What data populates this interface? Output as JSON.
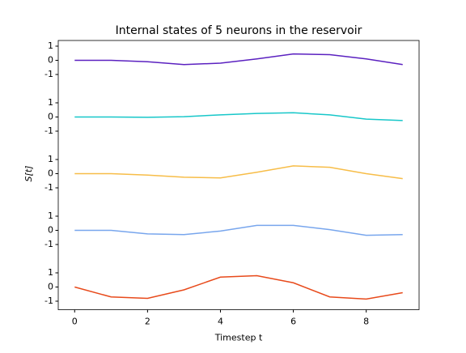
{
  "chart_data": [
    {
      "type": "line",
      "title": "Internal states of 5 neurons in the reservoir",
      "x": [
        0,
        1,
        2,
        3,
        4,
        5,
        6,
        7,
        8,
        9
      ],
      "values": [
        0,
        0,
        -0.1,
        -0.3,
        -0.2,
        0.1,
        0.45,
        0.4,
        0.1,
        -0.3
      ],
      "color": "#5b21c0",
      "ylim": [
        -2,
        1.4
      ],
      "yticks": [
        1,
        0,
        -1
      ]
    },
    {
      "type": "line",
      "x": [
        0,
        1,
        2,
        3,
        4,
        5,
        6,
        7,
        8,
        9
      ],
      "values": [
        0,
        0,
        -0.02,
        0.02,
        0.15,
        0.25,
        0.3,
        0.15,
        -0.15,
        -0.25
      ],
      "color": "#17c7c9",
      "ylim": [
        -2,
        2
      ],
      "yticks": [
        1,
        0,
        -1
      ]
    },
    {
      "type": "line",
      "ylabel": "S[t]",
      "x": [
        0,
        1,
        2,
        3,
        4,
        5,
        6,
        7,
        8,
        9
      ],
      "values": [
        0,
        0,
        -0.1,
        -0.25,
        -0.3,
        0.1,
        0.55,
        0.45,
        0,
        -0.35
      ],
      "color": "#f7bd48",
      "ylim": [
        -2,
        2
      ],
      "yticks": [
        1,
        0,
        -1
      ]
    },
    {
      "type": "line",
      "x": [
        0,
        1,
        2,
        3,
        4,
        5,
        6,
        7,
        8,
        9
      ],
      "values": [
        0,
        0,
        -0.25,
        -0.3,
        -0.05,
        0.35,
        0.35,
        0.05,
        -0.35,
        -0.3
      ],
      "color": "#78a6ed",
      "ylim": [
        -2,
        2
      ],
      "yticks": [
        1,
        0,
        -1
      ]
    },
    {
      "type": "line",
      "xlabel": "Timestep t",
      "x": [
        0,
        1,
        2,
        3,
        4,
        5,
        6,
        7,
        8,
        9
      ],
      "values": [
        0,
        -0.7,
        -0.8,
        -0.2,
        0.7,
        0.8,
        0.3,
        -0.7,
        -0.85,
        -0.4
      ],
      "color": "#e84a1b",
      "ylim": [
        -1.6,
        2
      ],
      "yticks": [
        1,
        0,
        -1
      ],
      "xlim": [
        -0.45,
        9.45
      ],
      "xticks": [
        0,
        2,
        4,
        6,
        8
      ]
    }
  ]
}
